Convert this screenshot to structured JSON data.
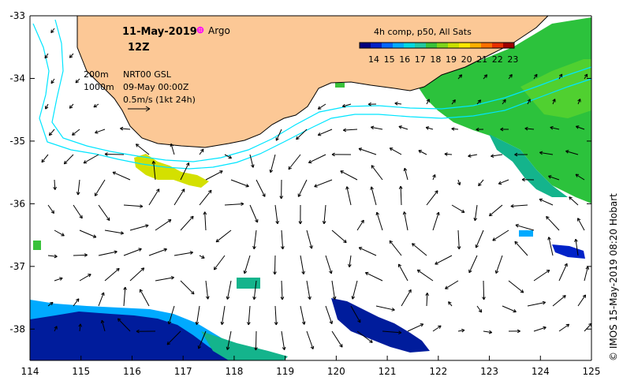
{
  "header": {
    "date": "11-May-2019",
    "time": "12Z",
    "argo_label": "Argo"
  },
  "colorbar": {
    "title": "4h comp, p50, All Sats",
    "ticks": [
      "14",
      "15",
      "16",
      "17",
      "18",
      "19",
      "20",
      "21",
      "22",
      "23"
    ],
    "colors": [
      "#00007f",
      "#0022c8",
      "#0066ff",
      "#00aaff",
      "#00d8e0",
      "#22c8a0",
      "#39c23a",
      "#7fd41a",
      "#c8e000",
      "#ffe800",
      "#ffb000",
      "#ff7000",
      "#e83000",
      "#a00000"
    ]
  },
  "legend": {
    "contour1": "200m",
    "contour2": "1000m",
    "source": "NRT00 GSL",
    "valid": "09-May 00:00Z",
    "scale": "0.5m/s (1kt 24h)"
  },
  "axes": {
    "x_ticks": [
      "114",
      "115",
      "116",
      "117",
      "118",
      "119",
      "120",
      "121",
      "122",
      "123",
      "124",
      "125"
    ],
    "y_ticks": [
      "-33",
      "-34",
      "-35",
      "-36",
      "-37",
      "-38"
    ],
    "xlim": [
      114,
      125
    ],
    "ylim": [
      -38.5,
      -33
    ]
  },
  "credit": "© IMOS 15-May-2019 08:20 Hobart",
  "colors": {
    "land": "#fcc896",
    "shelf": "#00e5ff",
    "argo": "#ff00ff",
    "cool": "#001c9c",
    "warm": "#27c33a"
  }
}
